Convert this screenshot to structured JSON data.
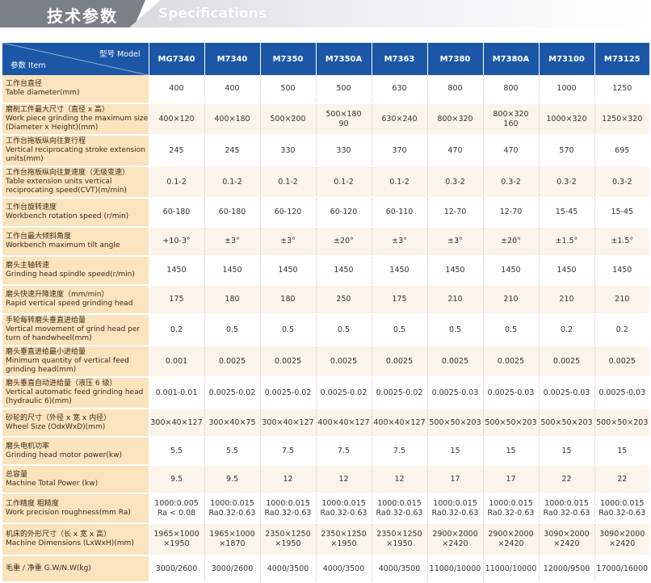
{
  "banner": {
    "title_zh": "技术参数",
    "title_en": "Specifications"
  },
  "header": {
    "model_label": "型号 Model",
    "item_label": "参数 Item"
  },
  "models": [
    "MG7340",
    "M7340",
    "M7350",
    "M7350A",
    "M7363",
    "M7380",
    "M7380A",
    "M73100",
    "M73125"
  ],
  "rows": [
    {
      "zh": "工作台直径",
      "en": "Table diameter(mm)",
      "values": [
        "400",
        "400",
        "500",
        "500",
        "630",
        "800",
        "800",
        "1000",
        "1250"
      ]
    },
    {
      "zh": "磨削工件最大尺寸（直径 x 高）",
      "en": "Work piece grinding the maximum size (Diameter x Height)(mm)",
      "values": [
        "400×120",
        "400×180",
        "500×200",
        "500×180\n90",
        "630×240",
        "800×320",
        "800×320\n160",
        "1000×320",
        "1250×320"
      ]
    },
    {
      "zh": "工作台拖板纵向往复行程",
      "en": "Vertical reciprocating stroke extension units(mm)",
      "values": [
        "245",
        "245",
        "330",
        "330",
        "370",
        "470",
        "470",
        "570",
        "695"
      ]
    },
    {
      "zh": "工作台拖板纵向往复速度（无级变速）",
      "en": "Table extension units vertical reciprocating speed(CVT)(m/min)",
      "values": [
        "0.1-2",
        "0.1-2",
        "0.1-2",
        "0.1-2",
        "0.1-2",
        "0.3-2",
        "0.3-2",
        "0.3-2",
        "0.3-2"
      ]
    },
    {
      "zh": "工作台旋转速度",
      "en": "Workbench rotation speed (r/min)",
      "values": [
        "60-180",
        "60-180",
        "60-120",
        "60-120",
        "60-110",
        "12-70",
        "12-70",
        "15-45",
        "15-45"
      ]
    },
    {
      "zh": "工作台最大倾斜角度",
      "en": "Workbench maximum tilt angle",
      "values": [
        "+10-3°",
        "±3°",
        "±3°",
        "±20°",
        "±3°",
        "±3°",
        "±20°",
        "±1.5°",
        "±1.5°"
      ]
    },
    {
      "zh": "磨头主轴转速",
      "en": "Grinding head spindle speed(r/min)",
      "values": [
        "1450",
        "1450",
        "1450",
        "1450",
        "1450",
        "1450",
        "1450",
        "1450",
        "1450"
      ]
    },
    {
      "zh": "磨头快速升降速度（mm/min）",
      "en": "Rapid vertical speed grinding head",
      "values": [
        "175",
        "180",
        "180",
        "250",
        "175",
        "210",
        "210",
        "210",
        "210"
      ]
    },
    {
      "zh": "手轮每转磨头垂直进给量",
      "en": "Vertical movement of grind head per turn of handwheel(mm)",
      "values": [
        "0.2",
        "0.5",
        "0.5",
        "0.5",
        "0.5",
        "0.5",
        "0.5",
        "0.2",
        "0.2"
      ]
    },
    {
      "zh": "磨头垂直进给最小进给量",
      "en": "Minimum quantity of vertical feed grinding head(mm)",
      "values": [
        "0.001",
        "0.0025",
        "0.0025",
        "0.0025",
        "0.0025",
        "0.0025",
        "0.0025",
        "0.0025",
        "0.0025"
      ]
    },
    {
      "zh": "磨头垂直自动进给量（液压 6 级）",
      "en": "Vertical automatic feed grinding head (hydraulic 6)(mm)",
      "values": [
        "0.001-0.01",
        "0.0025-0.02",
        "0.0025-0.02",
        "0.0025-0.02",
        "0.0025-0.02",
        "0.0025-0.03",
        "0.0025-0.03",
        "0.0025-0.03",
        "0.0025-0.03"
      ]
    },
    {
      "zh": "砂轮的尺寸（外径 x 宽 x 内径）",
      "en": "Wheel Size (OdxWxD)(mm)",
      "values": [
        "300×40×127",
        "300×40×75",
        "300×40×127",
        "400×40×127",
        "400×40×127",
        "500×50×203",
        "500×50×203",
        "500×50×203",
        "500×50×203"
      ]
    },
    {
      "zh": "磨头电机功率",
      "en": "Grinding head motor power(kw)",
      "values": [
        "5.5",
        "5.5",
        "7.5",
        "7.5",
        "7.5",
        "15",
        "15",
        "15",
        "15"
      ]
    },
    {
      "zh": "总容量",
      "en": "Machine Total Power (kw)",
      "values": [
        "9.5",
        "9.5",
        "12",
        "12",
        "12",
        "17",
        "17",
        "22",
        "22"
      ]
    },
    {
      "zh": "工作精度  粗糙度",
      "en": "Work precision roughness(mm Ra)",
      "values": [
        "1000:0.005\nRa < 0.08",
        "1000:0.015\nRa0.32-0.63",
        "1000:0.015\nRa0.32-0.63",
        "1000:0.015\nRa0.32-0.63",
        "1000:0.015\nRa0.32-0.63",
        "1000:0.015\nRa0.32-0.63",
        "1000:0.015\nRa0.32-0.63",
        "1000:0.015\nRa0.32-0.63",
        "1000:0.015\nRa0.32-0.63"
      ]
    },
    {
      "zh": "机床的外形尺寸（长 x 宽 x 高）",
      "en": "Machine Dimensions (LxWxH)(mm)",
      "values": [
        "1965×1000\n×1950",
        "1965×1000\n×1870",
        "2350×1250\n×1950",
        "2350×1250\n×1950",
        "2350×1250\n×1950",
        "2900×2000\n×2420",
        "2900×2000\n×2420",
        "3090×2000\n×2420",
        "3090×2000\n×2420"
      ]
    },
    {
      "zh": "毛重 / 净重 G.W/N.W(kg)",
      "en": "",
      "values": [
        "3000/2600",
        "3000/2600",
        "4000/3500",
        "4000/3500",
        "4000/3500",
        "11000/10000",
        "11000/10000",
        "12000/9500",
        "17000/16000"
      ]
    }
  ],
  "colors": {
    "header_blue": "#1b57a6",
    "label_bg": "#fae3bd",
    "banner_grey": "#7b7f86"
  }
}
